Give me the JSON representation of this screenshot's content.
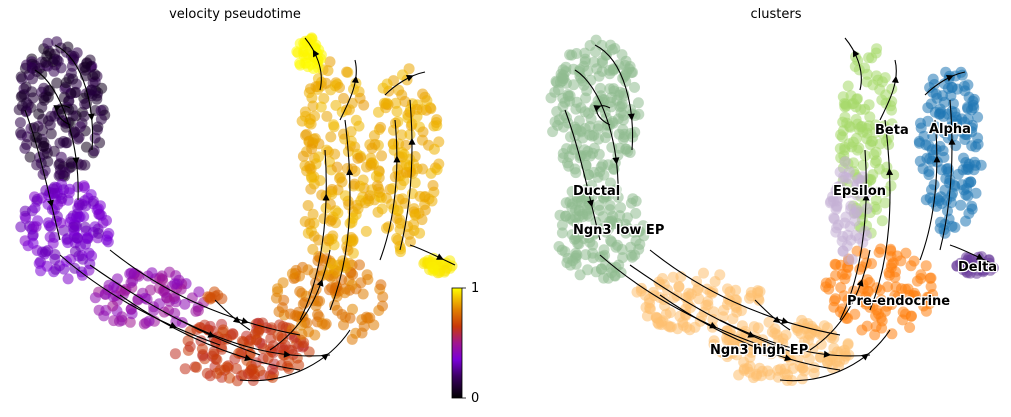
{
  "panels": [
    {
      "title": "velocity pseudotime"
    },
    {
      "title": "clusters"
    }
  ],
  "colorbar": {
    "min_label": "0",
    "max_label": "1"
  },
  "chart_data": [
    {
      "type": "scatter",
      "title": "velocity pseudotime",
      "color_by": "velocity pseudotime",
      "colormap": "gnuplot",
      "color_range": [
        0,
        1
      ],
      "overlay": "velocity streamlines",
      "axes_visible": false,
      "colorbar_ticks": [
        "0",
        "1"
      ]
    },
    {
      "type": "scatter",
      "title": "clusters",
      "color_by": "clusters",
      "overlay": "velocity streamlines",
      "axes_visible": false,
      "legend_placement": "on data",
      "clusters": [
        {
          "name": "Ductal",
          "color": "#8fbc8f"
        },
        {
          "name": "Ngn3 low EP",
          "color": "#8fbc8f"
        },
        {
          "name": "Ngn3 high EP",
          "color": "#fdbf6f"
        },
        {
          "name": "Pre-endocrine",
          "color": "#ff7f0e"
        },
        {
          "name": "Beta",
          "color": "#a6d96a"
        },
        {
          "name": "Alpha",
          "color": "#1f77b4"
        },
        {
          "name": "Delta",
          "color": "#6a3d9a"
        },
        {
          "name": "Epsilon",
          "color": "#c5b0d5"
        }
      ]
    }
  ]
}
